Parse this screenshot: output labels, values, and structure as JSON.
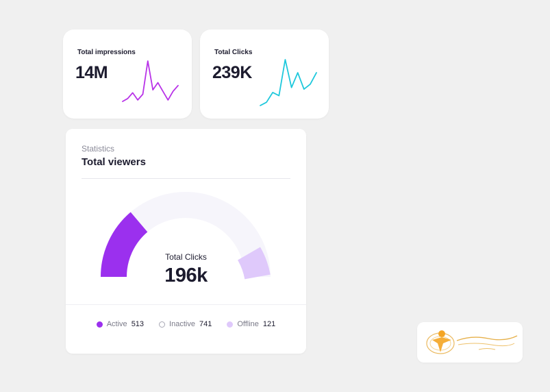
{
  "cards": {
    "impressions": {
      "title": "Total impressions",
      "value": "14M",
      "color": "#b832e8",
      "series": [
        2,
        4,
        8,
        3,
        7,
        30,
        10,
        15,
        9,
        3,
        9,
        13
      ]
    },
    "clicks": {
      "title": "Total Clicks",
      "value": "239K",
      "color": "#1ec8dc",
      "series": [
        2,
        4,
        10,
        8,
        30,
        13,
        22,
        12,
        15,
        22
      ]
    }
  },
  "viewers": {
    "subtitle": "Statistics",
    "title": "Total viewers",
    "center_label": "Total Clicks",
    "center_value": "196k",
    "colors": {
      "active": "#9b30ee",
      "inactive": "#f6f5fb",
      "offline": "#dfc9fb",
      "inactive_ring": "#a8a8b4"
    },
    "legend": [
      {
        "name": "Active",
        "count": "513"
      },
      {
        "name": "Inactive",
        "count": "741"
      },
      {
        "name": "Offline",
        "count": "121"
      }
    ]
  }
}
